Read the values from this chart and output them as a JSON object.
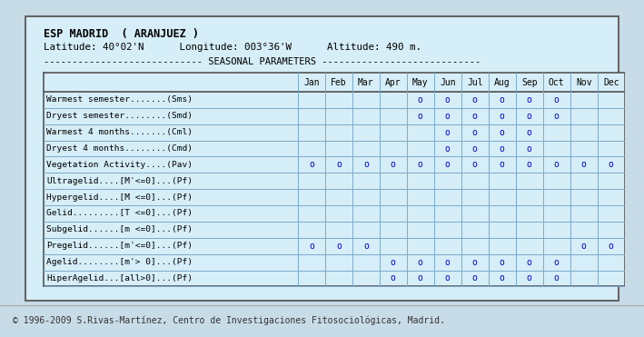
{
  "title_line1": "ESP MADRID  ( ARANJUEZ )",
  "title_line2": "Latitude: 40°02'N      Longitude: 003°36'W      Altitude: 490 m.",
  "title_line3": "---------------------------- SEASONAL PARAMETERS ----------------------------",
  "months": [
    "Jan",
    "Feb",
    "Mar",
    "Apr",
    "May",
    "Jun",
    "Jul",
    "Aug",
    "Sep",
    "Oct",
    "Nov",
    "Dec"
  ],
  "rows": [
    {
      "label": "Warmest semester.......(Sms)",
      "marks": [
        0,
        0,
        0,
        0,
        1,
        1,
        1,
        1,
        1,
        1,
        0,
        0
      ]
    },
    {
      "label": "Dryest semester........(Smd)",
      "marks": [
        0,
        0,
        0,
        0,
        1,
        1,
        1,
        1,
        1,
        1,
        0,
        0
      ]
    },
    {
      "label": "Warmest 4 months.......(Cml)",
      "marks": [
        0,
        0,
        0,
        0,
        0,
        1,
        1,
        1,
        1,
        0,
        0,
        0
      ]
    },
    {
      "label": "Dryest 4 months........(Cmd)",
      "marks": [
        0,
        0,
        0,
        0,
        0,
        1,
        1,
        1,
        1,
        0,
        0,
        0
      ]
    },
    {
      "label": "Vegetation Activity....(Pav)",
      "marks": [
        1,
        1,
        1,
        1,
        1,
        1,
        1,
        1,
        1,
        1,
        1,
        1
      ]
    },
    {
      "label": "Ultragelid....[M'<=0]...(Pf)",
      "marks": [
        0,
        0,
        0,
        0,
        0,
        0,
        0,
        0,
        0,
        0,
        0,
        0
      ]
    },
    {
      "label": "Hypergelid....[M <=0]...(Pf)",
      "marks": [
        0,
        0,
        0,
        0,
        0,
        0,
        0,
        0,
        0,
        0,
        0,
        0
      ]
    },
    {
      "label": "Gelid.........[T <=0]...(Pf)",
      "marks": [
        0,
        0,
        0,
        0,
        0,
        0,
        0,
        0,
        0,
        0,
        0,
        0
      ]
    },
    {
      "label": "Subgelid......[m <=0]...(Pf)",
      "marks": [
        0,
        0,
        0,
        0,
        0,
        0,
        0,
        0,
        0,
        0,
        0,
        0
      ]
    },
    {
      "label": "Pregelid......[m'<=0]...(Pf)",
      "marks": [
        1,
        1,
        1,
        0,
        0,
        0,
        0,
        0,
        0,
        0,
        1,
        1
      ]
    },
    {
      "label": "Agelid........[m'> 0]...(Pf)",
      "marks": [
        0,
        0,
        0,
        1,
        1,
        1,
        1,
        1,
        1,
        1,
        0,
        0
      ]
    },
    {
      "label": "HiperAgelid...[all>0]...(Pf)",
      "marks": [
        0,
        0,
        0,
        1,
        1,
        1,
        1,
        1,
        1,
        1,
        0,
        0
      ]
    }
  ],
  "mark_char": "o",
  "mark_color": "#0000cc",
  "bg_color": "#d6eef8",
  "outer_bg": "#c8dce8",
  "table_bg": "#d6eef8",
  "header_bg": "#b8d4e8",
  "grid_color": "#7aaacc",
  "text_color": "#000000",
  "label_color": "#000000",
  "footer": "© 1996-2009 S.Rivas-Martínez, Centro de Investigaciones Fitosociológicas, Madrid.",
  "footer_bg": "#e8e8e8"
}
